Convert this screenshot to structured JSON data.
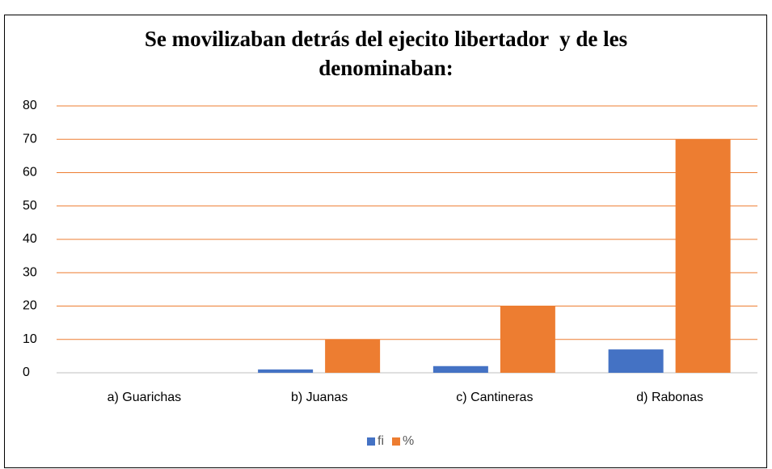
{
  "chart_data": {
    "type": "bar",
    "title": "Se movilizaban detrás del ejecito libertador  y de les denominaban:",
    "categories": [
      "a) Guarichas",
      "b) Juanas",
      "c) Cantineras",
      "d) Rabonas"
    ],
    "series": [
      {
        "name": "fi",
        "color": "#4472c4",
        "values": [
          0,
          1,
          2,
          7
        ]
      },
      {
        "name": "%",
        "color": "#ed7d31",
        "values": [
          0,
          10,
          20,
          70
        ]
      }
    ],
    "ylim": [
      0,
      80
    ],
    "yticks": [
      0,
      10,
      20,
      30,
      40,
      50,
      60,
      70,
      80
    ],
    "grid": true,
    "grid_color": "#ed7d31",
    "legend": "bottom"
  }
}
